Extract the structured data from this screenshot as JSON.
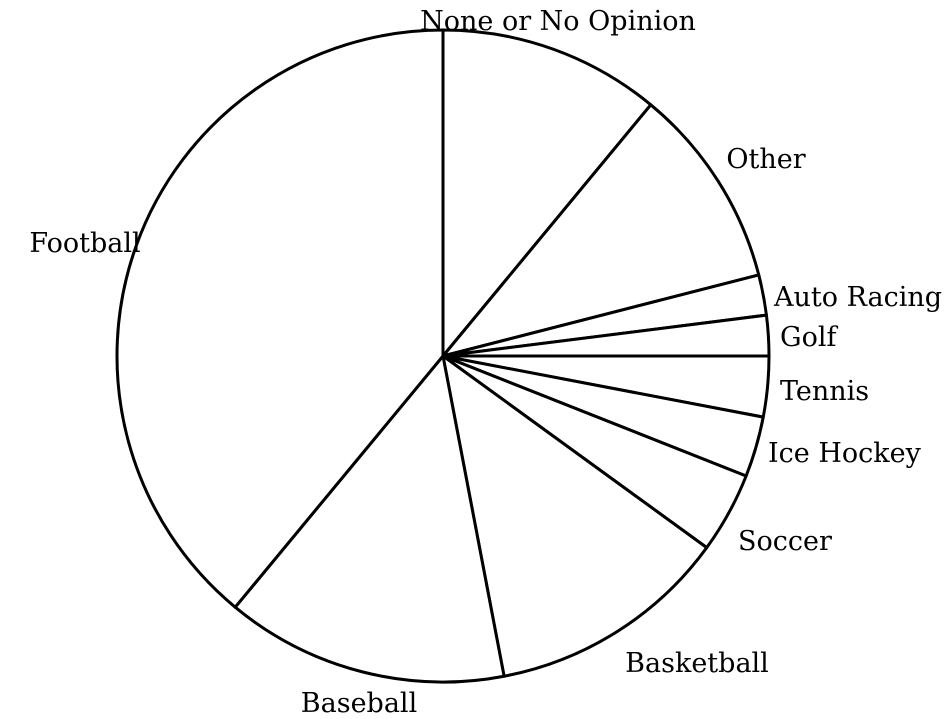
{
  "chart_data": {
    "type": "pie",
    "title": "",
    "start": "top",
    "direction": "clockwise",
    "slices": [
      {
        "label": "None or No Opinion",
        "value": 11
      },
      {
        "label": "Other",
        "value": 10
      },
      {
        "label": "Auto Racing",
        "value": 2
      },
      {
        "label": "Golf",
        "value": 2
      },
      {
        "label": "Tennis",
        "value": 3
      },
      {
        "label": "Ice Hockey",
        "value": 3
      },
      {
        "label": "Soccer",
        "value": 4
      },
      {
        "label": "Basketball",
        "value": 12
      },
      {
        "label": "Baseball",
        "value": 14
      },
      {
        "label": "Football",
        "value": 39
      }
    ],
    "colors": {
      "fill": "#ffffff",
      "stroke": "#000000"
    }
  }
}
